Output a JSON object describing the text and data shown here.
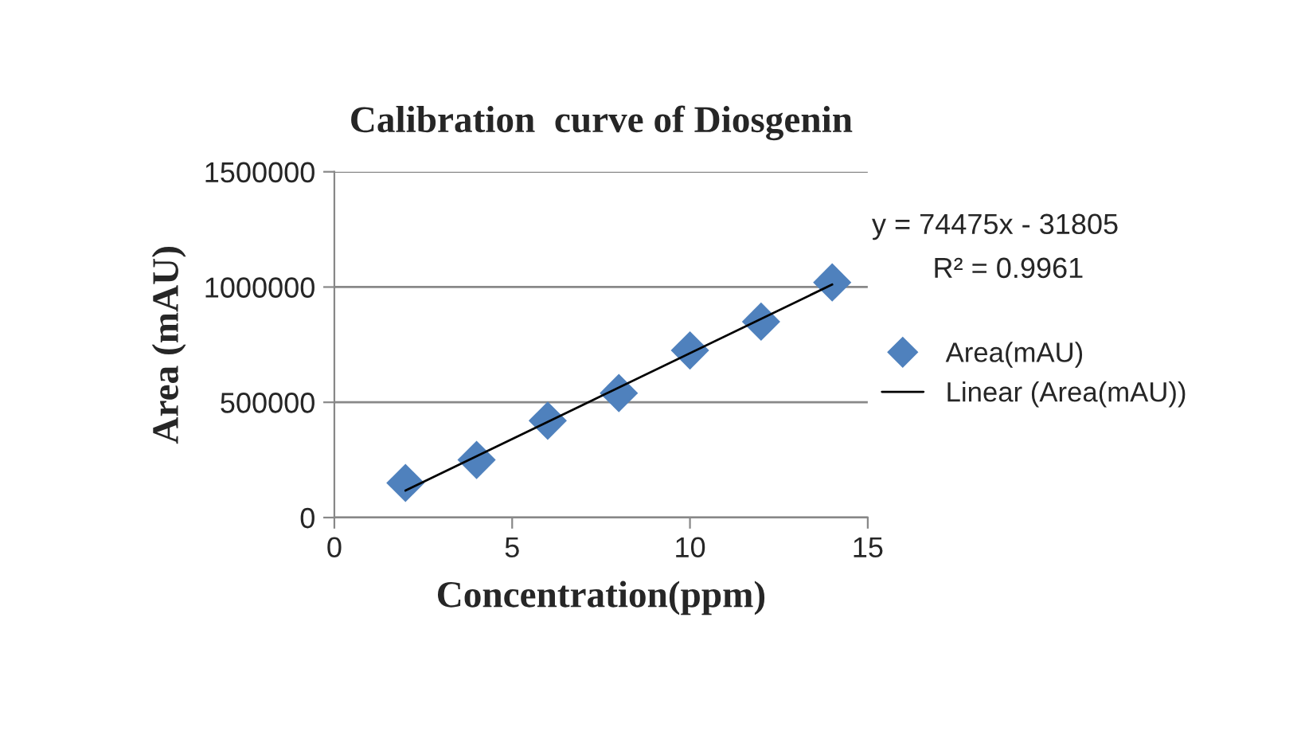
{
  "chart_data": {
    "type": "scatter",
    "title": "Calibration  curve of Diosgenin",
    "xlabel": "Concentration(ppm)",
    "ylabel": "Area (mAU)",
    "annotations": [
      "y = 74475x - 31805",
      "R² = 0.9961"
    ],
    "series": [
      {
        "name": "Area(mAU)",
        "color": "#4f81bd",
        "marker": "diamond",
        "x": [
          2,
          4,
          6,
          8,
          10,
          12,
          14
        ],
        "values": [
          150000,
          250000,
          420000,
          540000,
          725000,
          850000,
          1020000
        ]
      },
      {
        "name": "Linear (Area(mAU))",
        "type": "line",
        "color": "#000000",
        "marker": "none",
        "line_style": "solid",
        "x": [
          2,
          14
        ],
        "values": [
          117000,
          1011000
        ]
      }
    ],
    "xlim": [
      0,
      15
    ],
    "xticks": [
      0,
      5,
      10,
      15
    ],
    "ylim": [
      0,
      1500000
    ],
    "yticks": [
      0,
      500000,
      1000000,
      1500000
    ],
    "grid": "y",
    "legend": "right"
  }
}
